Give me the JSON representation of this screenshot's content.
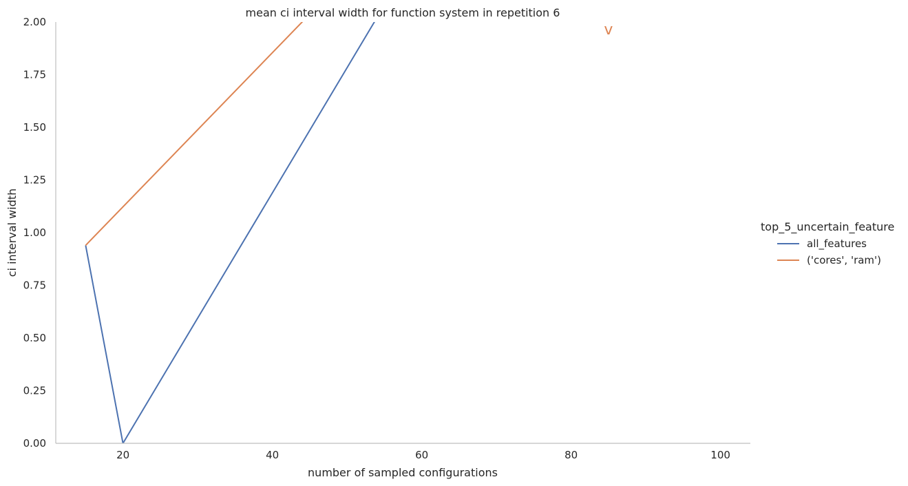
{
  "chart_data": {
    "type": "line",
    "title": "mean ci interval width for function system in repetition 6",
    "xlabel": "number of sampled configurations",
    "ylabel": "ci interval width",
    "xlim": [
      11,
      104
    ],
    "ylim": [
      0,
      2
    ],
    "xticks": [
      20,
      40,
      60,
      80,
      100
    ],
    "xtick_labels": [
      "20",
      "40",
      "60",
      "80",
      "100"
    ],
    "yticks": [
      0,
      0.25,
      0.5,
      0.75,
      1.0,
      1.25,
      1.5,
      1.75,
      2.0
    ],
    "ytick_labels": [
      "0.00",
      "0.25",
      "0.50",
      "0.75",
      "1.00",
      "1.25",
      "1.50",
      "1.75",
      "2.00"
    ],
    "grid": false,
    "legend": {
      "title": "top_5_uncertain_feature",
      "placement": "right"
    },
    "series": [
      {
        "name": "all_features",
        "color": "#4c72b0",
        "x": [
          15,
          20,
          55
        ],
        "y": [
          0.94,
          0.0,
          2.08
        ]
      },
      {
        "name": "('cores', 'ram')",
        "color": "#dd8452",
        "x": [
          15,
          50
        ],
        "y": [
          0.94,
          2.22
        ]
      }
    ],
    "annotations": [
      {
        "text": "v",
        "x": 85,
        "y": 1.97,
        "color": "#dd8452"
      }
    ]
  }
}
